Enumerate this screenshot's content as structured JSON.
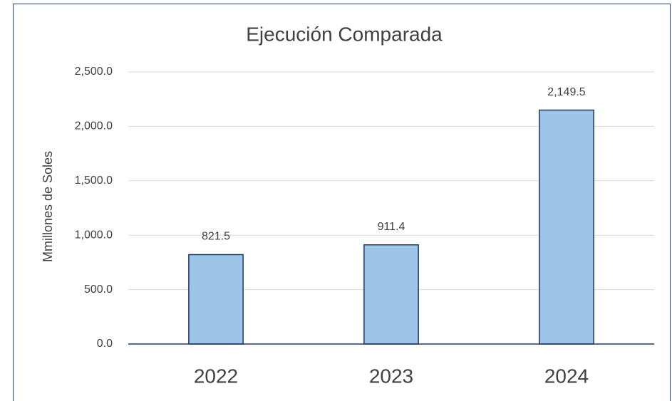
{
  "chart_data": {
    "type": "bar",
    "title": "Ejecución Comparada",
    "y_label": "Mmillones de Soles",
    "categories": [
      "2022",
      "2023",
      "2024"
    ],
    "values": [
      821.5,
      911.4,
      2149.5
    ],
    "value_labels": [
      "821.5",
      "911.4",
      "2,149.5"
    ],
    "color": "#9dc3e6",
    "edge_color": "#1f3864",
    "ylim": [
      0,
      2500
    ],
    "yticks": [
      {
        "value": 0,
        "label": "0.0"
      },
      {
        "value": 500,
        "label": "500.0"
      },
      {
        "value": 1000,
        "label": "1,000.0"
      },
      {
        "value": 1500,
        "label": "1,500.0"
      },
      {
        "value": 2000,
        "label": "2,000.0"
      },
      {
        "value": 2500,
        "label": "2,500.0"
      }
    ],
    "grid": true
  }
}
